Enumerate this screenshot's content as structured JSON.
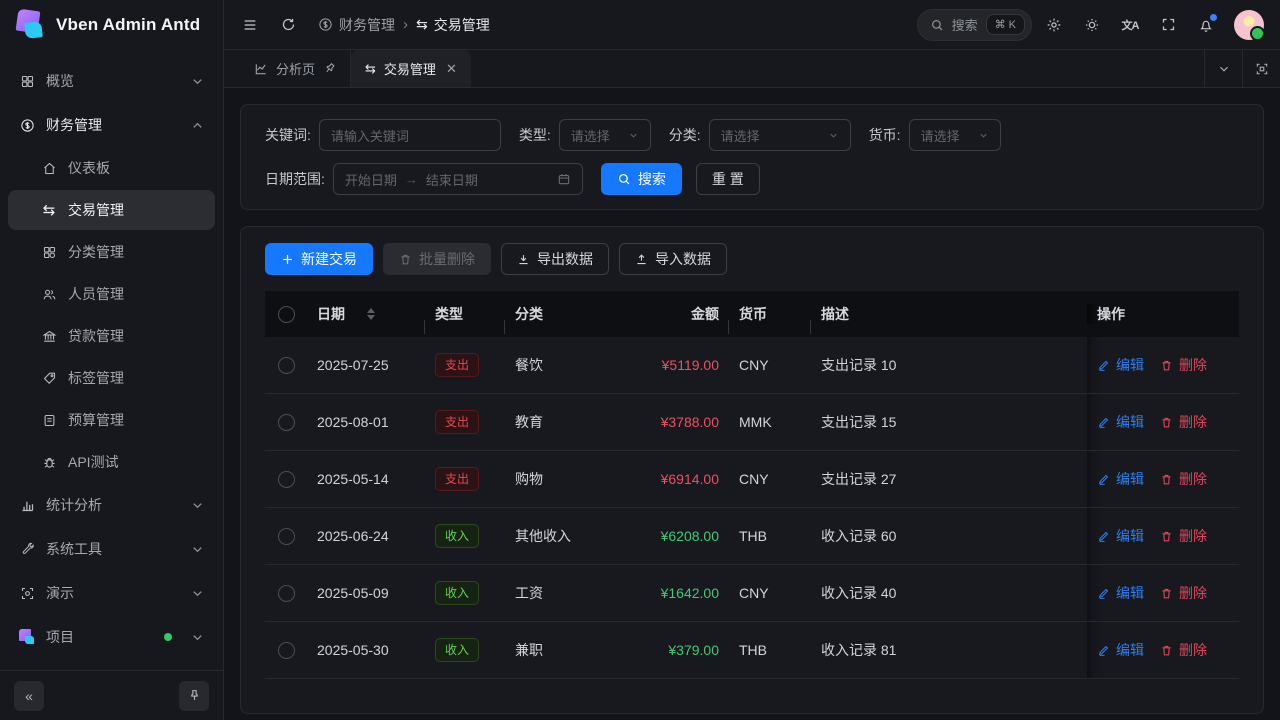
{
  "app": {
    "title": "Vben Admin Antd"
  },
  "header": {
    "breadcrumb": [
      {
        "label": "财务管理",
        "icon": "dollar-circle-icon"
      },
      {
        "label": "交易管理",
        "icon": "swap-icon"
      }
    ],
    "search": {
      "placeholder": "搜索",
      "shortcut": "⌘ K"
    },
    "translate_glyph": "文A"
  },
  "sidebar": {
    "items": [
      {
        "name": "overview",
        "icon": "grid-icon",
        "label": "概览",
        "chevron": "down"
      },
      {
        "name": "finance",
        "icon": "dollar-circle-icon",
        "label": "财务管理",
        "chevron": "up",
        "parent_active": true,
        "children": [
          {
            "name": "dashboard",
            "icon": "home-icon",
            "label": "仪表板"
          },
          {
            "name": "transactions",
            "icon": "swap-icon",
            "label": "交易管理",
            "active": true
          },
          {
            "name": "categories",
            "icon": "category-icon",
            "label": "分类管理"
          },
          {
            "name": "members",
            "icon": "users-icon",
            "label": "人员管理"
          },
          {
            "name": "loans",
            "icon": "bank-icon",
            "label": "贷款管理"
          },
          {
            "name": "tags",
            "icon": "tag-icon",
            "label": "标签管理"
          },
          {
            "name": "budgets",
            "icon": "document-icon",
            "label": "预算管理"
          },
          {
            "name": "api-test",
            "icon": "bug-icon",
            "label": "API测试"
          }
        ]
      },
      {
        "name": "statistics",
        "icon": "bar-chart-icon",
        "label": "统计分析",
        "chevron": "down"
      },
      {
        "name": "system-tools",
        "icon": "wrench-icon",
        "label": "系统工具",
        "chevron": "down"
      },
      {
        "name": "demo",
        "icon": "scan-icon",
        "label": "演示",
        "chevron": "down"
      },
      {
        "name": "project",
        "icon": "project-logo-icon",
        "label": "项目",
        "chevron": "down",
        "dot": true
      }
    ]
  },
  "tabs": [
    {
      "label": "分析页",
      "icon": "line-chart-icon",
      "pinned": true
    },
    {
      "label": "交易管理",
      "icon": "swap-icon",
      "active": true,
      "closable": true
    }
  ],
  "filters": {
    "keyword_label": "关键词:",
    "keyword_placeholder": "请输入关键词",
    "type_label": "类型:",
    "type_placeholder": "请选择",
    "category_label": "分类:",
    "category_placeholder": "请选择",
    "currency_label": "货币:",
    "currency_placeholder": "请选择",
    "date_label": "日期范围:",
    "date_start_placeholder": "开始日期",
    "date_end_placeholder": "结束日期",
    "search_button": "搜索",
    "reset_button": "重 置"
  },
  "toolbar": {
    "new_transaction": "新建交易",
    "batch_delete": "批量删除",
    "export_data": "导出数据",
    "import_data": "导入数据"
  },
  "table": {
    "columns": [
      "日期",
      "类型",
      "分类",
      "金额",
      "货币",
      "描述",
      "操作"
    ],
    "actions": {
      "edit": "编辑",
      "delete": "删除"
    },
    "rows": [
      {
        "date": "2025-07-25",
        "type": "支出",
        "kind": "expense",
        "category": "餐饮",
        "amount": "¥5119.00",
        "currency": "CNY",
        "description": "支出记录 10"
      },
      {
        "date": "2025-08-01",
        "type": "支出",
        "kind": "expense",
        "category": "教育",
        "amount": "¥3788.00",
        "currency": "MMK",
        "description": "支出记录 15"
      },
      {
        "date": "2025-05-14",
        "type": "支出",
        "kind": "expense",
        "category": "购物",
        "amount": "¥6914.00",
        "currency": "CNY",
        "description": "支出记录 27"
      },
      {
        "date": "2025-06-24",
        "type": "收入",
        "kind": "income",
        "category": "其他收入",
        "amount": "¥6208.00",
        "currency": "THB",
        "description": "收入记录 60"
      },
      {
        "date": "2025-05-09",
        "type": "收入",
        "kind": "income",
        "category": "工资",
        "amount": "¥1642.00",
        "currency": "CNY",
        "description": "收入记录 40"
      },
      {
        "date": "2025-05-30",
        "type": "收入",
        "kind": "income",
        "category": "兼职",
        "amount": "¥379.00",
        "currency": "THB",
        "description": "收入记录 81"
      }
    ]
  },
  "colors": {
    "accent_blue": "#1677ff",
    "expense_red": "#f14e63",
    "income_green": "#41c973",
    "tag_expense_text": "#e8484d",
    "tag_income_text": "#62d15e",
    "online_dot_green": "#2fcc66",
    "notification_dot_blue": "#3b82f6"
  }
}
